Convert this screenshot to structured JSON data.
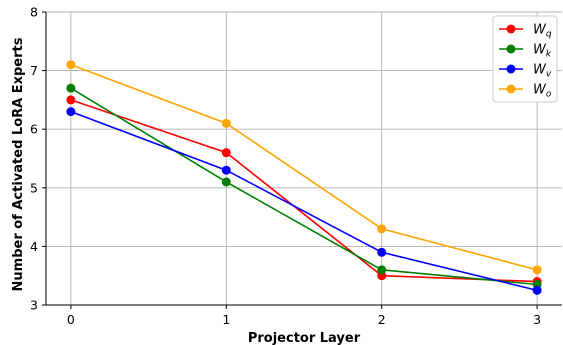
{
  "chart_data": {
    "type": "line",
    "title": "",
    "xlabel": "Projector Layer",
    "ylabel": "Number of Activated LoRA Experts",
    "x": [
      0,
      1,
      2,
      3
    ],
    "x_tick_labels": [
      "0",
      "1",
      "2",
      "3"
    ],
    "y_tick_labels": [
      "3",
      "4",
      "5",
      "6",
      "7",
      "8"
    ],
    "xlim": [
      -0.16,
      3.16
    ],
    "ylim": [
      3,
      8
    ],
    "grid": true,
    "legend_position": "top-right",
    "series": [
      {
        "name": "W",
        "subscript": "q",
        "color": "#ff0000",
        "values": [
          6.5,
          5.6,
          3.5,
          3.4
        ]
      },
      {
        "name": "W",
        "subscript": "k",
        "color": "#008000",
        "values": [
          6.7,
          5.1,
          3.6,
          3.35
        ]
      },
      {
        "name": "W",
        "subscript": "v",
        "color": "#0000ff",
        "values": [
          6.3,
          5.3,
          3.9,
          3.25
        ]
      },
      {
        "name": "W",
        "subscript": "o",
        "color": "#ffa500",
        "values": [
          7.1,
          6.1,
          4.3,
          3.6
        ]
      }
    ]
  }
}
